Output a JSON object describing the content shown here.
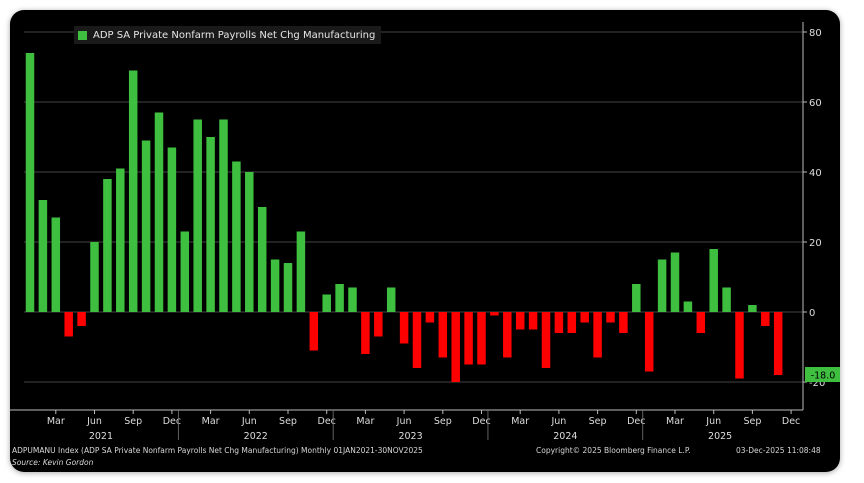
{
  "legend": {
    "label": "ADP SA Private Nonfarm Payrolls Net Chg Manufacturing",
    "color": "#3fbf3f"
  },
  "footer": {
    "index_text": "ADPUMANU Index (ADP SA Private Nonfarm Payrolls Net Chg Manufacturing) Monthly 01JAN2021-30NOV2025",
    "copyright": "Copyright© 2025 Bloomberg Finance L.P.",
    "timestamp": "03-Dec-2025 11:08:48",
    "source": "Source: Kevin Gordon"
  },
  "chart_data": {
    "type": "bar",
    "positive_color": "#3fbf3f",
    "negative_color": "#ff0000",
    "ylim": [
      -28,
      80
    ],
    "yticks": [
      80,
      60,
      40,
      20,
      0,
      -20
    ],
    "last_value_label": "-18.0",
    "grid": true,
    "months": [
      "Jan 2021",
      "Feb 2021",
      "Mar 2021",
      "Apr 2021",
      "May 2021",
      "Jun 2021",
      "Jul 2021",
      "Aug 2021",
      "Sep 2021",
      "Oct 2021",
      "Nov 2021",
      "Dec 2021",
      "Jan 2022",
      "Feb 2022",
      "Mar 2022",
      "Apr 2022",
      "May 2022",
      "Jun 2022",
      "Jul 2022",
      "Aug 2022",
      "Sep 2022",
      "Oct 2022",
      "Nov 2022",
      "Dec 2022",
      "Jan 2023",
      "Feb 2023",
      "Mar 2023",
      "Apr 2023",
      "May 2023",
      "Jun 2023",
      "Jul 2023",
      "Aug 2023",
      "Sep 2023",
      "Oct 2023",
      "Nov 2023",
      "Dec 2023",
      "Jan 2024",
      "Feb 2024",
      "Mar 2024",
      "Apr 2024",
      "May 2024",
      "Jun 2024",
      "Jul 2024",
      "Aug 2024",
      "Sep 2024",
      "Oct 2024",
      "Nov 2024",
      "Dec 2024",
      "Jan 2025",
      "Feb 2025",
      "Mar 2025",
      "Apr 2025",
      "May 2025",
      "Jun 2025",
      "Jul 2025",
      "Aug 2025",
      "Sep 2025",
      "Oct 2025",
      "Nov 2025"
    ],
    "values": [
      74,
      32,
      27,
      -7,
      -4,
      20,
      38,
      41,
      69,
      49,
      57,
      47,
      23,
      55,
      50,
      55,
      43,
      40,
      30,
      15,
      14,
      23,
      -11,
      5,
      8,
      7,
      -12,
      -7,
      7,
      -9,
      -16,
      -3,
      -13,
      -20,
      -15,
      -15,
      -1,
      -13,
      -5,
      -5,
      -16,
      -6,
      -6,
      -3,
      -13,
      -3,
      -6,
      8,
      -17,
      15,
      17,
      3,
      -6,
      18,
      7,
      -19,
      2,
      -4,
      -18
    ],
    "month_ticks": [
      {
        "label": "Mar",
        "index": 2
      },
      {
        "label": "Jun",
        "index": 5
      },
      {
        "label": "Sep",
        "index": 8
      },
      {
        "label": "Dec",
        "index": 11
      },
      {
        "label": "Mar",
        "index": 14
      },
      {
        "label": "Jun",
        "index": 17
      },
      {
        "label": "Sep",
        "index": 20
      },
      {
        "label": "Dec",
        "index": 23
      },
      {
        "label": "Mar",
        "index": 26
      },
      {
        "label": "Jun",
        "index": 29
      },
      {
        "label": "Sep",
        "index": 32
      },
      {
        "label": "Dec",
        "index": 35
      },
      {
        "label": "Mar",
        "index": 38
      },
      {
        "label": "Jun",
        "index": 41
      },
      {
        "label": "Sep",
        "index": 44
      },
      {
        "label": "Dec",
        "index": 47
      },
      {
        "label": "Mar",
        "index": 50
      },
      {
        "label": "Jun",
        "index": 53
      },
      {
        "label": "Sep",
        "index": 56
      },
      {
        "label": "Dec",
        "index": 59
      }
    ],
    "year_ticks": [
      {
        "label": "2021",
        "index": 5.5
      },
      {
        "label": "2022",
        "index": 17.5
      },
      {
        "label": "2023",
        "index": 29.5
      },
      {
        "label": "2024",
        "index": 41.5
      },
      {
        "label": "2025",
        "index": 53.5
      }
    ]
  }
}
